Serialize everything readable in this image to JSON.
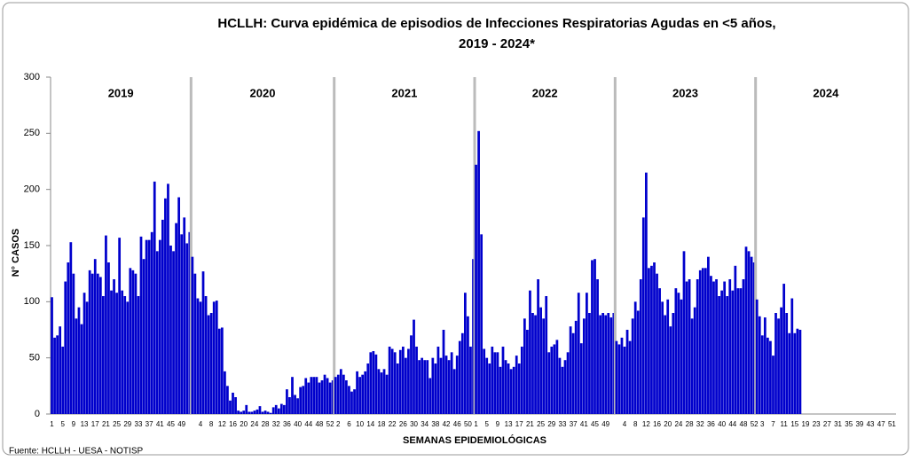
{
  "chart_data": {
    "type": "bar",
    "title": "HCLLH:  Curva epidémica de episodios de Infecciones Respiratorias Agudas en <5 años,",
    "subtitle": "2019 - 2024*",
    "y_label": "N° CASOS",
    "x_label": "SEMANAS EPIDEMIOLÓGICAS",
    "source": "Fuente: HCLLH - UESA - NOTISP",
    "color": "#0000cc",
    "ylim": [
      0,
      300
    ],
    "yticks": [
      0,
      50,
      100,
      150,
      200,
      250,
      300
    ],
    "groups": [
      {
        "name": "2019",
        "categories": [
          "1",
          null,
          null,
          null,
          "5",
          null,
          null,
          null,
          "9",
          null,
          null,
          null,
          "13",
          null,
          null,
          null,
          "17",
          null,
          null,
          null,
          "21",
          null,
          null,
          null,
          "25",
          null,
          null,
          null,
          "29",
          null,
          null,
          null,
          "33",
          null,
          null,
          null,
          "37",
          null,
          null,
          null,
          "41",
          null,
          null,
          null,
          "45",
          null,
          null,
          null,
          "49",
          null,
          null,
          null
        ],
        "values": [
          104,
          68,
          70,
          78,
          60,
          118,
          135,
          153,
          125,
          85,
          95,
          80,
          108,
          100,
          128,
          125,
          138,
          125,
          122,
          105,
          159,
          135,
          110,
          120,
          108,
          157,
          110,
          105,
          100,
          130,
          128,
          125,
          105,
          158,
          138,
          155,
          155,
          162,
          207,
          145,
          155,
          173,
          192,
          205,
          150,
          145,
          170,
          193,
          160,
          175,
          152,
          162
        ]
      },
      {
        "name": "2020",
        "categories": [
          null,
          null,
          null,
          "4",
          null,
          null,
          null,
          "8",
          null,
          null,
          null,
          "12",
          null,
          null,
          null,
          "16",
          null,
          null,
          null,
          "20",
          null,
          null,
          null,
          "24",
          null,
          null,
          null,
          "28",
          null,
          null,
          null,
          "32",
          null,
          null,
          null,
          "36",
          null,
          null,
          null,
          "40",
          null,
          null,
          null,
          "44",
          null,
          null,
          null,
          "48",
          null,
          null,
          null,
          "52",
          null
        ],
        "values": [
          140,
          125,
          103,
          100,
          127,
          105,
          88,
          90,
          100,
          101,
          76,
          77,
          38,
          25,
          12,
          19,
          15,
          3,
          2,
          3,
          8,
          2,
          2,
          3,
          4,
          7,
          2,
          3,
          2,
          1,
          6,
          8,
          5,
          9,
          8,
          22,
          15,
          33,
          17,
          14,
          24,
          25,
          32,
          28,
          33,
          33,
          33,
          28,
          30,
          35,
          32,
          28,
          30
        ]
      },
      {
        "name": "2021",
        "categories": [
          null,
          "2",
          null,
          null,
          null,
          "6",
          null,
          null,
          null,
          "10",
          null,
          null,
          null,
          "14",
          null,
          null,
          null,
          "18",
          null,
          null,
          null,
          "22",
          null,
          null,
          null,
          "26",
          null,
          null,
          null,
          "30",
          null,
          null,
          null,
          "34",
          null,
          null,
          null,
          "38",
          null,
          null,
          null,
          "42",
          null,
          null,
          null,
          "46",
          null,
          null,
          null,
          "50",
          null,
          null
        ],
        "values": [
          33,
          35,
          40,
          35,
          30,
          25,
          20,
          22,
          38,
          33,
          35,
          38,
          45,
          55,
          56,
          53,
          40,
          37,
          40,
          35,
          60,
          58,
          55,
          45,
          57,
          60,
          50,
          58,
          70,
          84,
          60,
          48,
          50,
          48,
          48,
          32,
          50,
          45,
          60,
          50,
          75,
          52,
          48,
          55,
          40,
          52,
          65,
          72,
          108,
          87,
          60,
          138
        ]
      },
      {
        "name": "2022",
        "categories": [
          "1",
          null,
          null,
          null,
          "5",
          null,
          null,
          null,
          "9",
          null,
          null,
          null,
          "13",
          null,
          null,
          null,
          "17",
          null,
          null,
          null,
          "21",
          null,
          null,
          null,
          "25",
          null,
          null,
          null,
          "29",
          null,
          null,
          null,
          "33",
          null,
          null,
          null,
          "37",
          null,
          null,
          null,
          "41",
          null,
          null,
          null,
          "45",
          null,
          null,
          null,
          "49",
          null,
          null,
          null
        ],
        "values": [
          222,
          252,
          160,
          58,
          50,
          45,
          60,
          55,
          55,
          42,
          60,
          48,
          45,
          40,
          42,
          52,
          45,
          60,
          85,
          75,
          110,
          90,
          88,
          120,
          95,
          85,
          105,
          55,
          60,
          62,
          66,
          50,
          42,
          48,
          55,
          78,
          72,
          83,
          108,
          63,
          85,
          108,
          90,
          137,
          138,
          120,
          88,
          90,
          88,
          90,
          86,
          90
        ]
      },
      {
        "name": "2023",
        "categories": [
          null,
          null,
          null,
          "4",
          null,
          null,
          null,
          "8",
          null,
          null,
          null,
          "12",
          null,
          null,
          null,
          "16",
          null,
          null,
          null,
          "20",
          null,
          null,
          null,
          "24",
          null,
          null,
          null,
          "28",
          null,
          null,
          null,
          "32",
          null,
          null,
          null,
          "36",
          null,
          null,
          null,
          "40",
          null,
          null,
          null,
          "44",
          null,
          null,
          null,
          "48",
          null,
          null,
          null,
          "52"
        ],
        "values": [
          65,
          62,
          68,
          60,
          75,
          65,
          85,
          100,
          92,
          120,
          175,
          215,
          130,
          132,
          135,
          125,
          112,
          100,
          88,
          102,
          78,
          90,
          112,
          108,
          102,
          145,
          118,
          120,
          85,
          95,
          120,
          128,
          130,
          130,
          140,
          123,
          118,
          120,
          105,
          110,
          118,
          105,
          120,
          110,
          132,
          112,
          112,
          120,
          149,
          145,
          140,
          135
        ]
      },
      {
        "name": "2024",
        "categories": [
          null,
          null,
          "3",
          null,
          null,
          null,
          "7",
          null,
          null,
          null,
          "11",
          null,
          null,
          null,
          "15",
          null,
          null,
          null,
          "19",
          null,
          null,
          null,
          "23",
          null,
          null,
          null,
          "27",
          null,
          null,
          null,
          "31",
          null,
          null,
          null,
          "35",
          null,
          null,
          null,
          "39",
          null,
          null,
          null,
          "43",
          null,
          null,
          null,
          "47",
          null,
          null,
          null,
          "51",
          null
        ],
        "values": [
          102,
          87,
          70,
          86,
          68,
          65,
          52,
          90,
          85,
          95,
          116,
          90,
          72,
          103,
          72,
          76,
          75,
          null,
          null,
          null,
          null,
          null,
          null,
          null,
          null,
          null,
          null,
          null,
          null,
          null,
          null,
          null,
          null,
          null,
          null,
          null,
          null,
          null,
          null,
          null,
          null,
          null,
          null,
          null,
          null,
          null,
          null,
          null,
          null,
          null,
          null,
          null
        ]
      }
    ]
  }
}
